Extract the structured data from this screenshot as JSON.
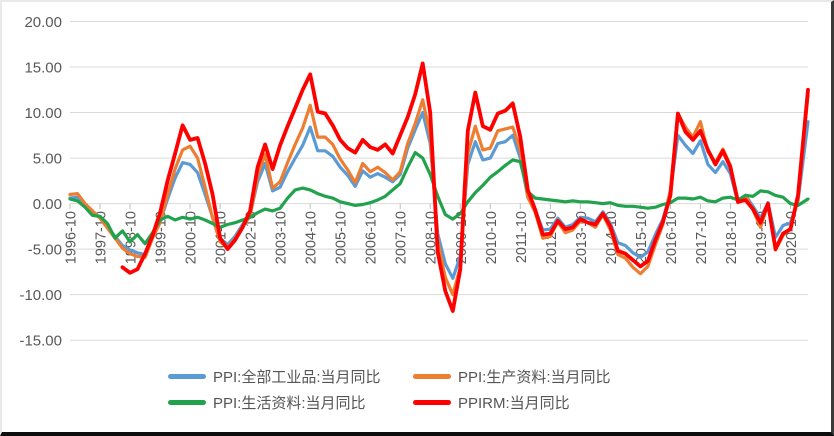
{
  "chart_data": {
    "type": "line",
    "title": "",
    "xlabel": "",
    "ylabel": "",
    "ylim": [
      -15,
      20
    ],
    "ytick_step": 5,
    "ytick_labels": [
      "20.00",
      "15.00",
      "10.00",
      "5.00",
      "0.00",
      "-5.00",
      "-10.00",
      "-15.00"
    ],
    "xtick_labels": [
      "1996-10",
      "1997-10",
      "1998-10",
      "1999-10",
      "2000-10",
      "2001-10",
      "2002-10",
      "2003-10",
      "2004-10",
      "2005-10",
      "2006-10",
      "2007-10",
      "2008-10",
      "2009-10",
      "2010-10",
      "2011-10",
      "2012-10",
      "2013-10",
      "2014-10",
      "2015-10",
      "2016-10",
      "2017-10",
      "2018-10",
      "2019-10",
      "2020-10"
    ],
    "grid": true,
    "legend_position": "bottom",
    "axis_text_color": "#595959",
    "gridline_color": "#d9d9d9",
    "tick_color": "#bfbfbf",
    "x": [
      "1996-10",
      "1997-01",
      "1997-04",
      "1997-07",
      "1997-10",
      "1998-01",
      "1998-04",
      "1998-07",
      "1998-10",
      "1999-01",
      "1999-04",
      "1999-07",
      "1999-10",
      "2000-01",
      "2000-04",
      "2000-07",
      "2000-10",
      "2001-01",
      "2001-04",
      "2001-07",
      "2001-10",
      "2002-01",
      "2002-04",
      "2002-07",
      "2002-10",
      "2003-01",
      "2003-04",
      "2003-07",
      "2003-10",
      "2004-01",
      "2004-04",
      "2004-07",
      "2004-10",
      "2005-01",
      "2005-04",
      "2005-07",
      "2005-10",
      "2006-01",
      "2006-04",
      "2006-07",
      "2006-10",
      "2007-01",
      "2007-04",
      "2007-07",
      "2007-10",
      "2008-01",
      "2008-04",
      "2008-07",
      "2008-10",
      "2009-01",
      "2009-04",
      "2009-07",
      "2009-10",
      "2010-01",
      "2010-04",
      "2010-07",
      "2010-10",
      "2011-01",
      "2011-04",
      "2011-07",
      "2011-10",
      "2012-01",
      "2012-04",
      "2012-07",
      "2012-10",
      "2013-01",
      "2013-04",
      "2013-07",
      "2013-10",
      "2014-01",
      "2014-04",
      "2014-07",
      "2014-10",
      "2015-01",
      "2015-04",
      "2015-07",
      "2015-10",
      "2016-01",
      "2016-04",
      "2016-07",
      "2016-10",
      "2017-01",
      "2017-04",
      "2017-07",
      "2017-10",
      "2018-01",
      "2018-04",
      "2018-07",
      "2018-10",
      "2019-01",
      "2019-04",
      "2019-07",
      "2019-10",
      "2020-01",
      "2020-04",
      "2020-07",
      "2020-10",
      "2021-01",
      "2021-05"
    ],
    "series": [
      {
        "name": "PPI:全部工业品:当月同比",
        "color": "#5B9BD5",
        "width": 3.2,
        "values": [
          0.6,
          0.7,
          -0.3,
          -0.9,
          -1.5,
          -2.5,
          -3.6,
          -4.6,
          -5.1,
          -5.4,
          -5.6,
          -3.5,
          -2.0,
          0.5,
          2.8,
          4.5,
          4.3,
          3.4,
          1.0,
          -1.5,
          -3.8,
          -4.5,
          -3.6,
          -2.3,
          -1.2,
          2.4,
          4.4,
          1.4,
          1.8,
          3.5,
          5.0,
          6.4,
          8.4,
          5.8,
          5.8,
          5.2,
          4.0,
          3.1,
          1.9,
          3.6,
          2.9,
          3.3,
          2.9,
          2.4,
          3.2,
          6.1,
          8.1,
          10.0,
          6.6,
          -3.3,
          -6.6,
          -8.2,
          -5.8,
          4.3,
          6.8,
          4.8,
          5.0,
          6.6,
          6.8,
          7.5,
          5.0,
          0.7,
          -0.7,
          -2.9,
          -2.8,
          -1.6,
          -2.6,
          -2.3,
          -1.5,
          -1.6,
          -2.0,
          -0.9,
          -2.2,
          -4.3,
          -4.6,
          -5.4,
          -5.9,
          -5.3,
          -3.4,
          -1.7,
          1.2,
          7.5,
          6.4,
          5.5,
          6.9,
          4.3,
          3.4,
          4.6,
          3.3,
          0.1,
          0.9,
          -0.3,
          -1.6,
          0.1,
          -3.7,
          -2.4,
          -2.1,
          0.3,
          9.0
        ]
      },
      {
        "name": "PPI:生产资料:当月同比",
        "color": "#ED7D31",
        "width": 3.2,
        "values": [
          1.0,
          1.1,
          0.0,
          -0.8,
          -1.6,
          -2.7,
          -3.8,
          -4.9,
          -5.5,
          -5.8,
          -5.9,
          -3.8,
          -2.1,
          1.0,
          3.8,
          5.9,
          6.3,
          5.0,
          1.8,
          -1.6,
          -4.2,
          -4.8,
          -3.9,
          -2.5,
          -1.4,
          3.1,
          5.4,
          1.7,
          2.4,
          4.5,
          6.5,
          8.3,
          10.8,
          7.3,
          7.3,
          6.5,
          4.9,
          3.7,
          2.3,
          4.4,
          3.5,
          4.0,
          3.4,
          2.6,
          3.5,
          6.6,
          8.8,
          11.4,
          7.5,
          -4.1,
          -8.1,
          -10.0,
          -7.0,
          5.5,
          8.5,
          5.9,
          6.1,
          8.0,
          8.2,
          8.4,
          5.9,
          0.7,
          -1.0,
          -3.8,
          -3.6,
          -2.0,
          -3.2,
          -2.9,
          -1.9,
          -2.1,
          -2.6,
          -1.2,
          -2.9,
          -5.6,
          -6.0,
          -7.0,
          -7.7,
          -6.9,
          -4.5,
          -2.3,
          1.5,
          9.9,
          8.4,
          7.3,
          9.0,
          5.7,
          4.5,
          6.0,
          4.2,
          0.1,
          0.9,
          -0.7,
          -2.6,
          0.0,
          -5.1,
          -3.5,
          -2.7,
          0.5,
          12.0
        ]
      },
      {
        "name": "PPI:生活资料:当月同比",
        "color": "#22A24C",
        "width": 3.2,
        "values": [
          0.5,
          0.3,
          -0.4,
          -1.3,
          -1.4,
          -2.2,
          -3.8,
          -3.0,
          -4.2,
          -3.4,
          -4.4,
          -3.2,
          -1.8,
          -1.4,
          -1.8,
          -1.5,
          -1.7,
          -1.5,
          -1.8,
          -2.2,
          -2.6,
          -2.3,
          -2.1,
          -1.8,
          -1.5,
          -1.0,
          -0.6,
          -0.8,
          -0.5,
          0.6,
          1.5,
          1.7,
          1.5,
          1.1,
          0.8,
          0.6,
          0.2,
          0.0,
          -0.2,
          -0.1,
          0.1,
          0.4,
          0.8,
          1.5,
          2.2,
          4.0,
          5.6,
          5.0,
          3.2,
          0.8,
          -1.2,
          -1.7,
          -1.1,
          0.2,
          1.2,
          2.0,
          2.9,
          3.5,
          4.2,
          4.8,
          4.6,
          1.3,
          0.6,
          0.5,
          0.4,
          0.3,
          0.2,
          0.3,
          0.2,
          0.2,
          0.1,
          0.0,
          0.1,
          -0.2,
          -0.3,
          -0.3,
          -0.4,
          -0.5,
          -0.4,
          -0.1,
          0.1,
          0.6,
          0.6,
          0.5,
          0.7,
          0.3,
          0.2,
          0.6,
          0.7,
          0.4,
          0.9,
          0.8,
          1.4,
          1.3,
          0.9,
          0.7,
          0.0,
          -0.2,
          0.5
        ]
      },
      {
        "name": "PPIRM:当月同比",
        "color": "#FF0000",
        "width": 3.8,
        "values": [
          null,
          null,
          null,
          null,
          null,
          null,
          null,
          -7.0,
          -7.6,
          -7.2,
          -5.5,
          -3.5,
          -1.0,
          2.5,
          5.5,
          8.6,
          7.0,
          7.2,
          4.4,
          1.0,
          -3.8,
          -5.0,
          -4.0,
          -2.6,
          -0.8,
          4.0,
          6.5,
          3.8,
          6.4,
          8.5,
          10.5,
          12.5,
          14.2,
          10.1,
          9.9,
          8.6,
          7.0,
          6.1,
          5.6,
          7.0,
          6.2,
          5.9,
          6.5,
          5.5,
          7.5,
          9.5,
          12.0,
          15.4,
          10.0,
          -5.3,
          -9.6,
          -11.8,
          -7.2,
          8.0,
          12.2,
          8.5,
          8.1,
          9.9,
          10.2,
          11.0,
          7.3,
          1.5,
          -0.7,
          -3.4,
          -3.3,
          -1.9,
          -2.8,
          -2.6,
          -1.7,
          -2.1,
          -2.3,
          -1.1,
          -2.5,
          -5.2,
          -5.5,
          -6.2,
          -6.9,
          -6.3,
          -4.0,
          -2.0,
          0.9,
          9.9,
          7.9,
          7.0,
          8.0,
          5.9,
          4.3,
          5.8,
          4.0,
          0.2,
          0.4,
          -0.6,
          -2.1,
          0.0,
          -5.0,
          -3.3,
          -2.8,
          0.9,
          12.5
        ]
      }
    ]
  }
}
